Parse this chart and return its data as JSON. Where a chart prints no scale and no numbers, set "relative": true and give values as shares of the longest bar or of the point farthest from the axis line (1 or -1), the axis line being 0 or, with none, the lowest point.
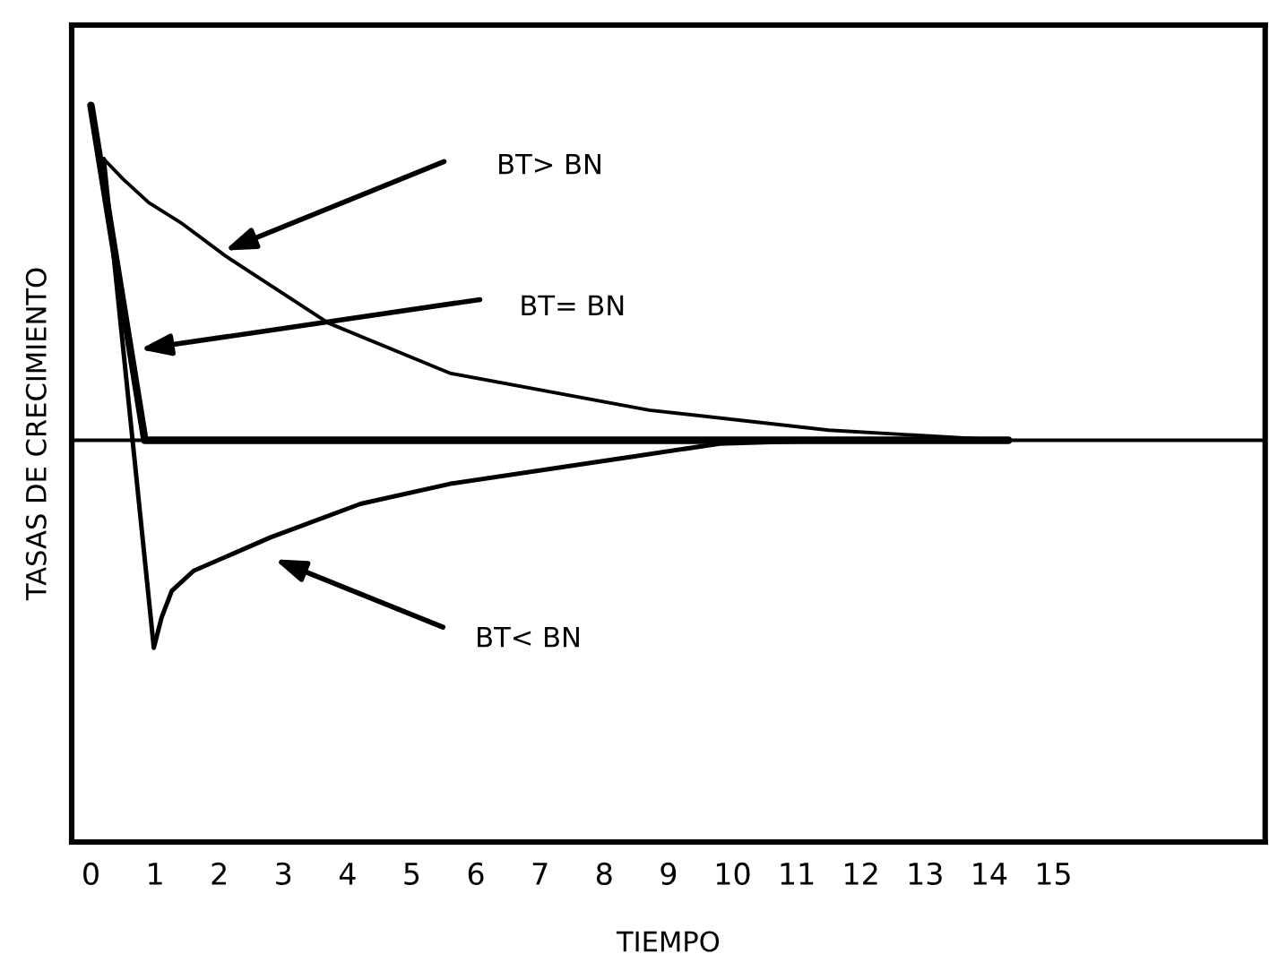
{
  "chart_data": {
    "type": "line",
    "relative": true,
    "xlabel": "TIEMPO",
    "ylabel": "TASAS DE CRECIMIENTO",
    "xlim": [
      -0.3,
      18.3
    ],
    "xticks": [
      0,
      1,
      2,
      3,
      4,
      5,
      6,
      7,
      8,
      9,
      10,
      11,
      12,
      13,
      14,
      15
    ],
    "grid": false,
    "legend": false,
    "marker": "none",
    "line_style": "solid",
    "ref_lines": [
      {
        "axis": "y",
        "value": 0,
        "color": "#000000"
      }
    ],
    "series": [
      {
        "color": "#000000",
        "x": [
          0.2,
          0.5,
          0.9,
          1.4,
          2.1,
          3.7,
          5.6,
          8.7,
          11.5,
          14.2
        ],
        "values": [
          0.84,
          0.78,
          0.71,
          0.65,
          0.55,
          0.35,
          0.2,
          0.09,
          0.03,
          0.0
        ]
      },
      {
        "color": "#000000",
        "x": [
          0.0,
          0.84,
          14.3
        ],
        "values": [
          1.0,
          0.0,
          0.0
        ]
      },
      {
        "color": "#000000",
        "x": [
          0.2,
          0.98,
          1.1,
          1.26,
          1.6,
          2.8,
          4.2,
          5.6,
          8.4,
          9.8,
          11.5
        ],
        "values": [
          0.84,
          -0.62,
          -0.53,
          -0.45,
          -0.39,
          -0.29,
          -0.19,
          -0.13,
          -0.05,
          -0.01,
          0.0
        ]
      }
    ],
    "annotations": [
      "BT> BN",
      "BT= BN",
      "BT< BN"
    ]
  }
}
